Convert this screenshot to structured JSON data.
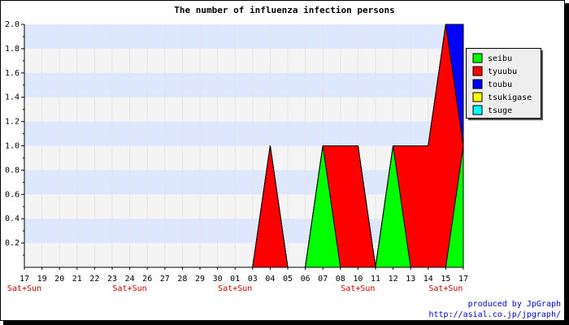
{
  "chart_data": {
    "type": "area",
    "title": "The number of influenza infection persons",
    "xlabel": "",
    "ylabel": "",
    "ylim": [
      0,
      2.0
    ],
    "yticks": [
      "0.2",
      "0.4",
      "0.6",
      "0.8",
      "1.0",
      "1.2",
      "1.4",
      "1.6",
      "1.8",
      "2.0"
    ],
    "stacked": true,
    "grid": "horizontal bands",
    "legend_position": "right",
    "categories": [
      "17",
      "19",
      "20",
      "21",
      "22",
      "23",
      "24",
      "26",
      "27",
      "28",
      "29",
      "30",
      "01",
      "03",
      "04",
      "05",
      "06",
      "07",
      "08",
      "10",
      "11",
      "12",
      "13",
      "14",
      "15",
      "17"
    ],
    "weekend_label": "Sat+Sun",
    "weekend_indices": [
      0,
      6,
      12,
      19,
      24
    ],
    "series": [
      {
        "name": "seibu",
        "color": "#00ff00",
        "values": [
          0,
          0,
          0,
          0,
          0,
          0,
          0,
          0,
          0,
          0,
          0,
          0,
          0,
          0,
          0,
          0,
          0,
          1,
          0,
          0,
          0,
          1,
          0,
          0,
          0,
          1
        ]
      },
      {
        "name": "tyuubu",
        "color": "#ff0000",
        "values": [
          0,
          0,
          0,
          0,
          0,
          0,
          0,
          0,
          0,
          0,
          0,
          0,
          0,
          0,
          1,
          0,
          0,
          0,
          1,
          1,
          0,
          0,
          1,
          1,
          2,
          0
        ]
      },
      {
        "name": "toubu",
        "color": "#0000ff",
        "values": [
          0,
          0,
          0,
          0,
          0,
          0,
          0,
          0,
          0,
          0,
          0,
          0,
          0,
          0,
          0,
          0,
          0,
          0,
          0,
          0,
          0,
          0,
          0,
          0,
          0,
          1
        ]
      },
      {
        "name": "tsukigase",
        "color": "#ffff00",
        "values": [
          0,
          0,
          0,
          0,
          0,
          0,
          0,
          0,
          0,
          0,
          0,
          0,
          0,
          0,
          0,
          0,
          0,
          0,
          0,
          0,
          0,
          0,
          0,
          0,
          0,
          0
        ]
      },
      {
        "name": "tsuge",
        "color": "#00ffff",
        "values": [
          0,
          0,
          0,
          0,
          0,
          0,
          0,
          0,
          0,
          0,
          0,
          0,
          0,
          0,
          0,
          0,
          0,
          0,
          0,
          0,
          0,
          0,
          0,
          0,
          0,
          0
        ]
      }
    ],
    "colors": {
      "background": "#ffffff",
      "band_light": "#f4f4f4",
      "band_blue": "#dde8ff",
      "weekend_text": "#cc0000",
      "credit_text": "#0000cc"
    }
  },
  "footer": {
    "credit_line1": "produced by JpGraph",
    "credit_line2": "http://asial.co.jp/jpgraph/"
  }
}
